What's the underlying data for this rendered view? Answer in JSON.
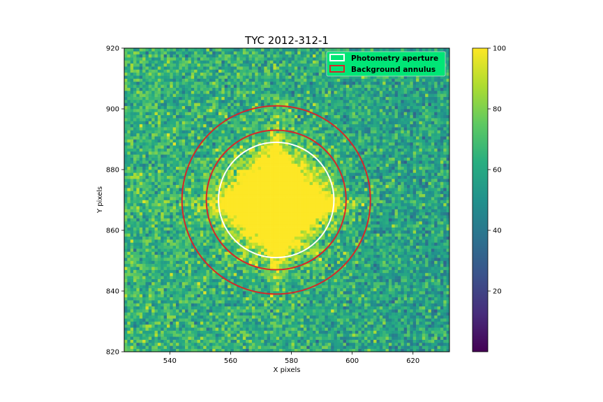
{
  "chart_data": {
    "type": "heatmap",
    "title": "TYC 2012-312-1",
    "xlabel": "X pixels",
    "ylabel": "Y pixels",
    "xlim": [
      525,
      632
    ],
    "ylim": [
      820,
      920
    ],
    "xticks": [
      540,
      560,
      580,
      600,
      620
    ],
    "yticks": [
      820,
      840,
      860,
      880,
      900,
      920
    ],
    "colormap": "viridis",
    "color_range": [
      0,
      100
    ],
    "colorbar_ticks": [
      20,
      40,
      60,
      80,
      100
    ],
    "grid": false,
    "legend_position": "top-right",
    "legend_background": "#00e676",
    "source": {
      "x": 575,
      "y": 869,
      "core_radius": 10,
      "peak": 100
    },
    "background_level": 62,
    "background_gradient": "slightly higher toward left, lower toward right",
    "aperture": {
      "label": "Photometry aperture",
      "x": 575,
      "y": 870,
      "radius": 19,
      "color": "#ffffff"
    },
    "annulus": {
      "label": "Background annulus",
      "x": 575,
      "y": 870,
      "inner_radius": 23,
      "outer_radius": 31,
      "color": "#d62728"
    }
  }
}
